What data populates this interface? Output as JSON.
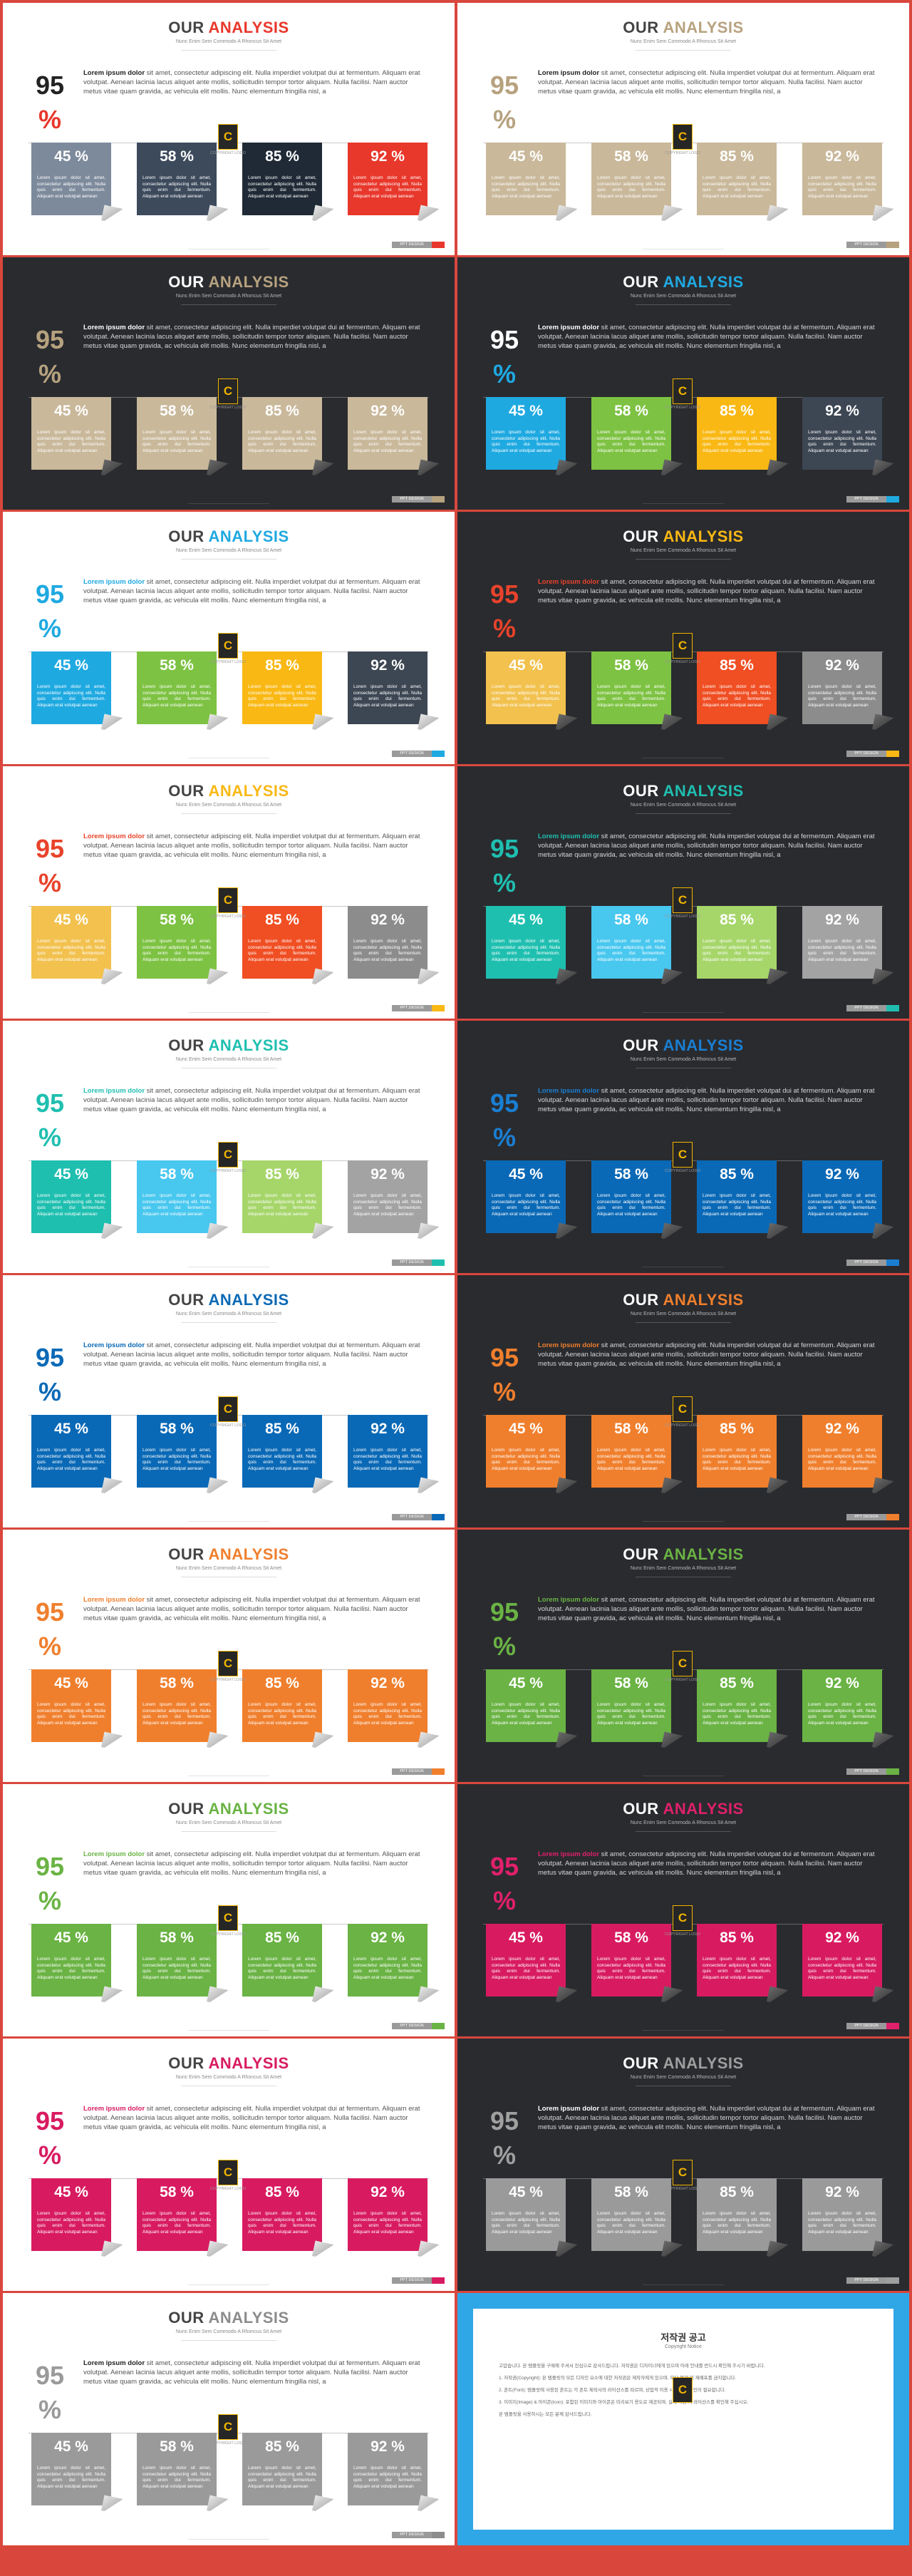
{
  "header": {
    "word1": "OUR",
    "word2": "ANALYSIS",
    "subtitle": "Nunc Enim Sem Commodo A Rhoncus Sit Amet"
  },
  "big_number": {
    "value": "95",
    "unit": "%"
  },
  "paragraph": {
    "lead": "Lorem ipsum dolor",
    "body": " sit amet, consectetur adipiscing elit. Nulla imperdiet volutpat dui at fermentum. Aliquam erat volutpat. Aenean lacinia lacus aliquet ante mollis, sollicitudin tempor tortor aliquam. Nulla facilisi. Nam auctor metus vitae quam gravida, ac vehicula elit mollis. Nunc elementum fringilla nisl, a"
  },
  "box_text": "Lorem ipsum dolor sit amet, consectetur adipiscing elit. Nulla quis enim dui fermentum. Aliquam erat volutpat aenean",
  "logo": {
    "glyph": "C",
    "caption": "COPYRIGHT LOGO"
  },
  "badge_label": "PPT DESIGN",
  "slides": [
    {
      "dark": false,
      "accent": "#e8372b",
      "num_color": "#222222",
      "pct_color": "#e8372b",
      "para_color": "#222222",
      "boxes": [
        {
          "pct": "45 %",
          "color": "#7d8a9c"
        },
        {
          "pct": "58 %",
          "color": "#3c4a5c"
        },
        {
          "pct": "85 %",
          "color": "#1f2a36"
        },
        {
          "pct": "92 %",
          "color": "#e8372b"
        }
      ]
    },
    {
      "dark": false,
      "accent": "#b7a27f",
      "num_color": "#b7a27f",
      "pct_color": "#b7a27f",
      "para_color": "#222222",
      "boxes": [
        {
          "pct": "45 %",
          "color": "#c9b89a"
        },
        {
          "pct": "58 %",
          "color": "#c9b89a"
        },
        {
          "pct": "85 %",
          "color": "#c9b89a"
        },
        {
          "pct": "92 %",
          "color": "#c9b89a"
        }
      ]
    },
    {
      "dark": true,
      "accent": "#b7a27f",
      "num_color": "#b7a27f",
      "pct_color": "#b7a27f",
      "para_color": "#ffffff",
      "boxes": [
        {
          "pct": "45 %",
          "color": "#c9b89a"
        },
        {
          "pct": "58 %",
          "color": "#c9b89a"
        },
        {
          "pct": "85 %",
          "color": "#c9b89a"
        },
        {
          "pct": "92 %",
          "color": "#c9b89a"
        }
      ]
    },
    {
      "dark": true,
      "accent": "#1fa9e1",
      "num_color": "#ffffff",
      "pct_color": "#1fa9e1",
      "para_color": "#ffffff",
      "boxes": [
        {
          "pct": "45 %",
          "color": "#1fa9e1"
        },
        {
          "pct": "58 %",
          "color": "#7dc242"
        },
        {
          "pct": "85 %",
          "color": "#f9b814"
        },
        {
          "pct": "92 %",
          "color": "#3d4653"
        }
      ]
    },
    {
      "dark": false,
      "accent": "#1fa9e1",
      "num_color": "#1fa9e1",
      "pct_color": "#1fa9e1",
      "para_color": "#1fa9e1",
      "boxes": [
        {
          "pct": "45 %",
          "color": "#1fa9e1"
        },
        {
          "pct": "58 %",
          "color": "#7dc242"
        },
        {
          "pct": "85 %",
          "color": "#f9b814"
        },
        {
          "pct": "92 %",
          "color": "#3d4653"
        }
      ]
    },
    {
      "dark": true,
      "accent": "#f9b814",
      "num_color": "#e8432b",
      "pct_color": "#e8432b",
      "para_color": "#e8432b",
      "boxes": [
        {
          "pct": "45 %",
          "color": "#f2c14e"
        },
        {
          "pct": "58 %",
          "color": "#7dc242"
        },
        {
          "pct": "85 %",
          "color": "#f04e23"
        },
        {
          "pct": "92 %",
          "color": "#8c8c8c"
        }
      ]
    },
    {
      "dark": false,
      "accent": "#f9b814",
      "num_color": "#e8432b",
      "pct_color": "#e8432b",
      "para_color": "#e8432b",
      "boxes": [
        {
          "pct": "45 %",
          "color": "#f2c14e"
        },
        {
          "pct": "58 %",
          "color": "#7dc242"
        },
        {
          "pct": "85 %",
          "color": "#f04e23"
        },
        {
          "pct": "92 %",
          "color": "#8c8c8c"
        }
      ]
    },
    {
      "dark": true,
      "accent": "#1fbfb0",
      "num_color": "#1fbfb0",
      "pct_color": "#1fbfb0",
      "para_color": "#1fbfb0",
      "boxes": [
        {
          "pct": "45 %",
          "color": "#1fbfb0"
        },
        {
          "pct": "58 %",
          "color": "#48c7ef"
        },
        {
          "pct": "85 %",
          "color": "#a6d66a"
        },
        {
          "pct": "92 %",
          "color": "#a3a3a3"
        }
      ]
    },
    {
      "dark": false,
      "accent": "#1fbfb0",
      "num_color": "#1fbfb0",
      "pct_color": "#1fbfb0",
      "para_color": "#1fbfb0",
      "boxes": [
        {
          "pct": "45 %",
          "color": "#1fbfb0"
        },
        {
          "pct": "58 %",
          "color": "#48c7ef"
        },
        {
          "pct": "85 %",
          "color": "#a6d66a"
        },
        {
          "pct": "92 %",
          "color": "#a3a3a3"
        }
      ]
    },
    {
      "dark": true,
      "accent": "#1a7fd3",
      "num_color": "#1a7fd3",
      "pct_color": "#1a7fd3",
      "para_color": "#1a7fd3",
      "boxes": [
        {
          "pct": "45 %",
          "color": "#0a69b6"
        },
        {
          "pct": "58 %",
          "color": "#0a69b6"
        },
        {
          "pct": "85 %",
          "color": "#0a69b6"
        },
        {
          "pct": "92 %",
          "color": "#0a69b6"
        }
      ]
    },
    {
      "dark": false,
      "accent": "#0a69b6",
      "num_color": "#0a69b6",
      "pct_color": "#0a69b6",
      "para_color": "#0a69b6",
      "boxes": [
        {
          "pct": "45 %",
          "color": "#0a69b6"
        },
        {
          "pct": "58 %",
          "color": "#0a69b6"
        },
        {
          "pct": "85 %",
          "color": "#0a69b6"
        },
        {
          "pct": "92 %",
          "color": "#0a69b6"
        }
      ]
    },
    {
      "dark": true,
      "accent": "#f07f2d",
      "num_color": "#f07f2d",
      "pct_color": "#f07f2d",
      "para_color": "#f07f2d",
      "boxes": [
        {
          "pct": "45 %",
          "color": "#f07f2d"
        },
        {
          "pct": "58 %",
          "color": "#f07f2d"
        },
        {
          "pct": "85 %",
          "color": "#f07f2d"
        },
        {
          "pct": "92 %",
          "color": "#f07f2d"
        }
      ]
    },
    {
      "dark": false,
      "accent": "#f07f2d",
      "num_color": "#f07f2d",
      "pct_color": "#f07f2d",
      "para_color": "#f07f2d",
      "boxes": [
        {
          "pct": "45 %",
          "color": "#f07f2d"
        },
        {
          "pct": "58 %",
          "color": "#f07f2d"
        },
        {
          "pct": "85 %",
          "color": "#f07f2d"
        },
        {
          "pct": "92 %",
          "color": "#f07f2d"
        }
      ]
    },
    {
      "dark": true,
      "accent": "#6ab344",
      "num_color": "#6ab344",
      "pct_color": "#6ab344",
      "para_color": "#6ab344",
      "boxes": [
        {
          "pct": "45 %",
          "color": "#6ab344"
        },
        {
          "pct": "58 %",
          "color": "#6ab344"
        },
        {
          "pct": "85 %",
          "color": "#6ab344"
        },
        {
          "pct": "92 %",
          "color": "#6ab344"
        }
      ]
    },
    {
      "dark": false,
      "accent": "#6ab344",
      "num_color": "#6ab344",
      "pct_color": "#6ab344",
      "para_color": "#6ab344",
      "boxes": [
        {
          "pct": "45 %",
          "color": "#6ab344"
        },
        {
          "pct": "58 %",
          "color": "#6ab344"
        },
        {
          "pct": "85 %",
          "color": "#6ab344"
        },
        {
          "pct": "92 %",
          "color": "#6ab344"
        }
      ]
    },
    {
      "dark": true,
      "accent": "#e0206b",
      "num_color": "#e0206b",
      "pct_color": "#e0206b",
      "para_color": "#e0206b",
      "boxes": [
        {
          "pct": "45 %",
          "color": "#d81b60"
        },
        {
          "pct": "58 %",
          "color": "#d81b60"
        },
        {
          "pct": "85 %",
          "color": "#d81b60"
        },
        {
          "pct": "92 %",
          "color": "#d81b60"
        }
      ]
    },
    {
      "dark": false,
      "accent": "#d81b60",
      "num_color": "#d81b60",
      "pct_color": "#d81b60",
      "para_color": "#d81b60",
      "boxes": [
        {
          "pct": "45 %",
          "color": "#d81b60"
        },
        {
          "pct": "58 %",
          "color": "#d81b60"
        },
        {
          "pct": "85 %",
          "color": "#d81b60"
        },
        {
          "pct": "92 %",
          "color": "#d81b60"
        }
      ]
    },
    {
      "dark": true,
      "accent": "#9e9e9e",
      "num_color": "#a0a0a0",
      "pct_color": "#a0a0a0",
      "para_color": "#ffffff",
      "boxes": [
        {
          "pct": "45 %",
          "color": "#9a9a9a"
        },
        {
          "pct": "58 %",
          "color": "#9a9a9a"
        },
        {
          "pct": "85 %",
          "color": "#9a9a9a"
        },
        {
          "pct": "92 %",
          "color": "#9a9a9a"
        }
      ]
    },
    {
      "dark": false,
      "accent": "#8c8c8c",
      "num_color": "#9a9a9a",
      "pct_color": "#9a9a9a",
      "para_color": "#222222",
      "boxes": [
        {
          "pct": "45 %",
          "color": "#9a9a9a"
        },
        {
          "pct": "58 %",
          "color": "#9a9a9a"
        },
        {
          "pct": "85 %",
          "color": "#9a9a9a"
        },
        {
          "pct": "92 %",
          "color": "#9a9a9a"
        }
      ]
    }
  ],
  "notice": {
    "title": "저작권 공고",
    "subtitle": "Copyright Notice",
    "paragraphs": [
      "고맙습니다. 본 템플릿을 구매해 주셔서 진심으로 감사드립니다. 저작권은 디자이너에게 있으며 아래 안내를 반드시 확인해 주시기 바랍니다.",
      "1. 저작권(Copyright): 본 템플릿의 모든 디자인 요소에 대한 저작권은 제작자에게 있으며, 무단 복제 및 재배포를 금지합니다.",
      "2. 폰트(Font): 템플릿에 사용된 폰트는 각 폰트 제작사의 라이선스를 따르며, 상업적 이용 시 별도의 확인이 필요합니다.",
      "3. 이미지(Image) & 아이콘(Icon): 포함된 이미지와 아이콘은 미리보기 용도로 제공되며, 실제 사용 시 라이선스를 확인해 주십시오.",
      "본 템플릿을 사용하시는 모든 분께 감사드립니다."
    ]
  }
}
